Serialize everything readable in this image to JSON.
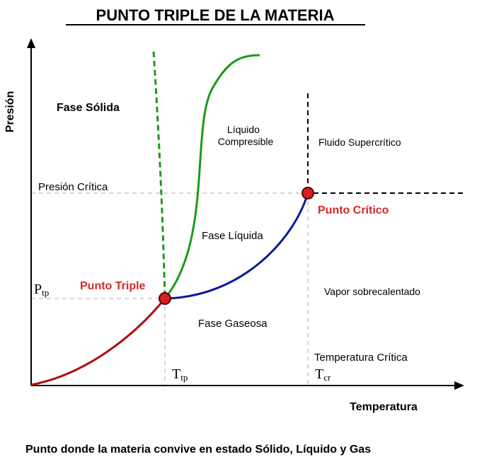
{
  "title": "PUNTO TRIPLE DE LA MATERIA",
  "axes": {
    "y_label": "Presión",
    "x_label": "Temperatura"
  },
  "regions": {
    "solid": "Fase Sólida",
    "compressible_liquid_line1": "Líquido",
    "compressible_liquid_line2": "Compresible",
    "supercritical": "Fluido Supercrítico",
    "liquid": "Fase Líquida",
    "superheated_vapor": "Vapor sobrecalentado",
    "gas": "Fase Gaseosa"
  },
  "reference_labels": {
    "critical_pressure": "Presión Crítica",
    "critical_temperature": "Temperatura Crítica",
    "p_tp_main": "P",
    "p_tp_sub": "tp",
    "t_tp_main": "T",
    "t_tp_sub": "tp",
    "t_cr_main": "T",
    "t_cr_sub": "cr"
  },
  "points": {
    "triple": "Punto Triple",
    "critical": "Punto Crítico"
  },
  "caption": "Punto donde la materia convive en estado Sólido, Líquido y Gas",
  "colors": {
    "sublimation_curve": "#aa1111",
    "melting_curve": "#1a9a1a",
    "vaporization_curve": "#0a1a9a",
    "point_fill": "#d42020",
    "point_label": "#d42a2a",
    "guide_line": "#c8c8c8"
  }
}
